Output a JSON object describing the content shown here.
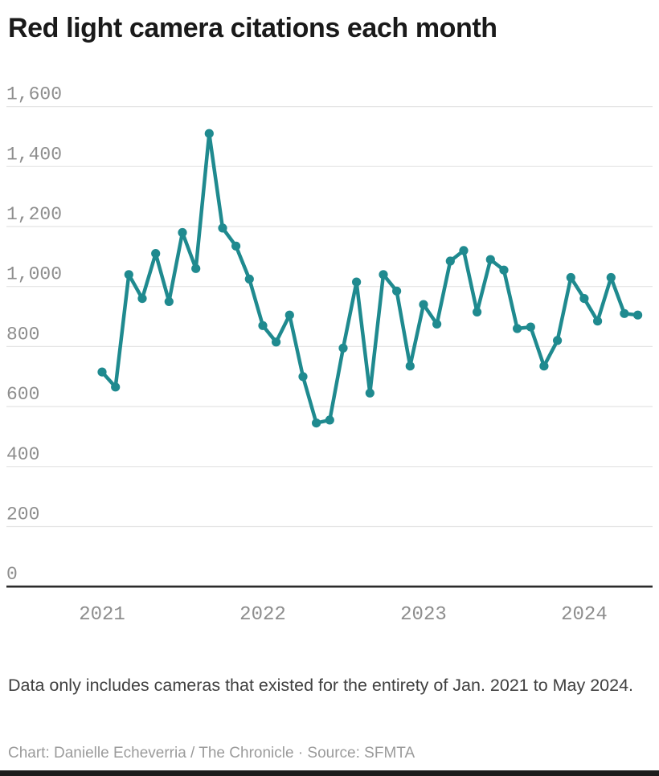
{
  "header": {
    "title": "Red light camera citations each month"
  },
  "chart_data": {
    "type": "line",
    "title": "Red light camera citations each month",
    "series_name": "Red light camera citations",
    "x": [
      "2021-01",
      "2021-02",
      "2021-03",
      "2021-04",
      "2021-05",
      "2021-06",
      "2021-07",
      "2021-08",
      "2021-09",
      "2021-10",
      "2021-11",
      "2021-12",
      "2022-01",
      "2022-02",
      "2022-03",
      "2022-04",
      "2022-05",
      "2022-06",
      "2022-07",
      "2022-08",
      "2022-09",
      "2022-10",
      "2022-11",
      "2022-12",
      "2023-01",
      "2023-02",
      "2023-03",
      "2023-04",
      "2023-05",
      "2023-06",
      "2023-07",
      "2023-08",
      "2023-09",
      "2023-10",
      "2023-11",
      "2023-12",
      "2024-01",
      "2024-02",
      "2024-03",
      "2024-04",
      "2024-05"
    ],
    "values": [
      715,
      665,
      1040,
      960,
      1110,
      950,
      1180,
      1060,
      1510,
      1195,
      1135,
      1025,
      870,
      815,
      905,
      700,
      545,
      555,
      795,
      1015,
      645,
      1040,
      985,
      735,
      940,
      875,
      1085,
      1120,
      915,
      1090,
      1055,
      860,
      865,
      735,
      820,
      1030,
      960,
      885,
      1030,
      910,
      905
    ],
    "ylim": [
      0,
      1600
    ],
    "grid": true,
    "legend_position": "none",
    "xlabel": "",
    "ylabel": "",
    "y_ticks": [
      {
        "value": 0,
        "label": "0"
      },
      {
        "value": 200,
        "label": "200"
      },
      {
        "value": 400,
        "label": "400"
      },
      {
        "value": 600,
        "label": "600"
      },
      {
        "value": 800,
        "label": "800"
      },
      {
        "value": 1000,
        "label": "1,000"
      },
      {
        "value": 1200,
        "label": "1,200"
      },
      {
        "value": 1400,
        "label": "1,400"
      },
      {
        "value": 1600,
        "label": "1,600"
      }
    ],
    "x_ticks": [
      {
        "label": "2021",
        "x_index": 0
      },
      {
        "label": "2022",
        "x_index": 12
      },
      {
        "label": "2023",
        "x_index": 24
      },
      {
        "label": "2024",
        "x_index": 36
      }
    ]
  },
  "footer": {
    "note_text": "Data only includes cameras that existed for the entirety of Jan. 2021 to May 2024.",
    "credit_text": "Chart: Danielle Echeverria / The Chronicle · Source: SFMTA"
  },
  "colors": {
    "accent": "#1f8a8f",
    "grid": "#e4e4e4",
    "axis": "#2b2b2b",
    "tick_label": "#8e8e8e",
    "title": "#1a1a1a",
    "note": "#404040",
    "credit": "#9b9b9b",
    "bottom_bar": "#1c1c1c",
    "background": "#ffffff"
  }
}
